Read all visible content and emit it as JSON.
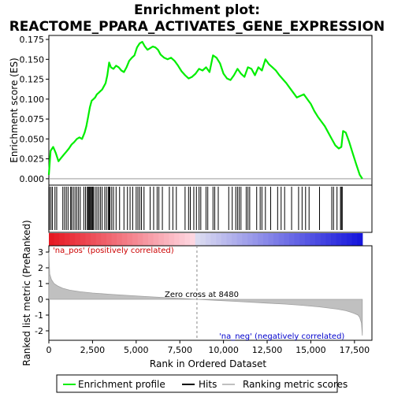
{
  "chart_data": [
    {
      "type": "line",
      "title_line1": "Enrichment plot:",
      "title_line2": "REACTOME_PPARA_ACTIVATES_GENE_EXPRESSION",
      "ylabel": "Enrichment score (ES)",
      "xlim": [
        0,
        18500
      ],
      "ylim": [
        -0.008,
        0.18
      ],
      "yticks": [
        0.0,
        0.025,
        0.05,
        0.075,
        0.1,
        0.125,
        0.15,
        0.175
      ],
      "ytick_labels": [
        "0.000",
        "0.025",
        "0.050",
        "0.075",
        "0.100",
        "0.125",
        "0.150",
        "0.175"
      ],
      "series": [
        {
          "name": "Enrichment profile",
          "color": "#00ee00",
          "x": [
            0,
            100,
            250,
            400,
            550,
            700,
            850,
            1000,
            1150,
            1300,
            1450,
            1600,
            1750,
            1900,
            2050,
            2150,
            2250,
            2350,
            2450,
            2550,
            2650,
            2750,
            2850,
            2950,
            3050,
            3150,
            3250,
            3350,
            3450,
            3550,
            3700,
            3850,
            4000,
            4150,
            4300,
            4450,
            4600,
            4750,
            4900,
            5050,
            5200,
            5350,
            5500,
            5650,
            5800,
            5950,
            6100,
            6250,
            6400,
            6600,
            6800,
            7000,
            7200,
            7400,
            7600,
            7800,
            8000,
            8200,
            8400,
            8600,
            8800,
            9000,
            9200,
            9400,
            9600,
            9800,
            10000,
            10200,
            10400,
            10600,
            10800,
            11000,
            11200,
            11400,
            11600,
            11800,
            12000,
            12200,
            12400,
            12600,
            12800,
            13000,
            13200,
            13400,
            13600,
            13800,
            14000,
            14200,
            14400,
            14600,
            14800,
            15000,
            15200,
            15400,
            15600,
            15800,
            16000,
            16200,
            16400,
            16600,
            16750,
            16850,
            17000,
            17200,
            17400,
            17600,
            17800,
            17950
          ],
          "y": [
            0.005,
            0.035,
            0.04,
            0.032,
            0.022,
            0.026,
            0.03,
            0.034,
            0.038,
            0.043,
            0.046,
            0.05,
            0.052,
            0.05,
            0.058,
            0.066,
            0.078,
            0.09,
            0.098,
            0.1,
            0.102,
            0.106,
            0.108,
            0.11,
            0.112,
            0.116,
            0.12,
            0.13,
            0.146,
            0.14,
            0.138,
            0.142,
            0.14,
            0.136,
            0.134,
            0.14,
            0.148,
            0.152,
            0.155,
            0.165,
            0.17,
            0.172,
            0.166,
            0.162,
            0.164,
            0.166,
            0.165,
            0.162,
            0.156,
            0.152,
            0.15,
            0.152,
            0.148,
            0.142,
            0.135,
            0.13,
            0.126,
            0.128,
            0.132,
            0.138,
            0.136,
            0.14,
            0.134,
            0.155,
            0.152,
            0.145,
            0.132,
            0.126,
            0.124,
            0.13,
            0.138,
            0.132,
            0.128,
            0.14,
            0.138,
            0.13,
            0.14,
            0.136,
            0.15,
            0.144,
            0.14,
            0.136,
            0.13,
            0.125,
            0.12,
            0.114,
            0.108,
            0.102,
            0.104,
            0.106,
            0.1,
            0.094,
            0.085,
            0.078,
            0.072,
            0.066,
            0.058,
            0.05,
            0.042,
            0.038,
            0.04,
            0.06,
            0.058,
            0.046,
            0.032,
            0.018,
            0.005,
            0.0
          ]
        }
      ]
    },
    {
      "type": "scatter",
      "series": [
        {
          "name": "Hits",
          "color": "#000000",
          "x": [
            30,
            120,
            200,
            350,
            450,
            800,
            900,
            1000,
            1100,
            1250,
            1300,
            1400,
            1500,
            1600,
            1700,
            1800,
            2000,
            2100,
            2200,
            2250,
            2300,
            2350,
            2400,
            2450,
            2500,
            2550,
            2650,
            2750,
            2850,
            2950,
            3050,
            3200,
            3300,
            3400,
            3450,
            3500,
            3600,
            3700,
            3850,
            4050,
            4300,
            4500,
            4650,
            4800,
            5000,
            5100,
            5200,
            5300,
            5450,
            5800,
            6000,
            6200,
            6300,
            6500,
            6900,
            7100,
            7300,
            7800,
            8000,
            8100,
            8300,
            8450,
            8600,
            8700,
            9000,
            9100,
            9400,
            9500,
            9700,
            10300,
            10500,
            10700,
            10800,
            10900,
            11000,
            11300,
            11400,
            11500,
            11900,
            12100,
            12200,
            12400,
            12700,
            13100,
            13300,
            13500,
            13900,
            14300,
            14500,
            14700,
            14900,
            15500,
            16200,
            16300,
            16500,
            16700,
            16750,
            16800
          ]
        }
      ]
    },
    {
      "type": "area",
      "ylabel": "Ranked list metric (PreRanked)",
      "xlabel": "Rank in Ordered Dataset",
      "xlim": [
        0,
        18500
      ],
      "ylim": [
        -2.6,
        3.4
      ],
      "xticks": [
        0,
        2500,
        5000,
        7500,
        10000,
        12500,
        15000,
        17500
      ],
      "xtick_labels": [
        "0",
        "2,500",
        "5,000",
        "7,500",
        "10,000",
        "12,500",
        "15,000",
        "17,500"
      ],
      "yticks": [
        -2,
        -1,
        0,
        1,
        2,
        3
      ],
      "ytick_labels": [
        "-2",
        "-1",
        "0",
        "1",
        "2",
        "3"
      ],
      "zero_cross_label": "Zero cross at 8480",
      "zero_cross_x": 8480,
      "pos_label": "'na_pos' (positively correlated)",
      "neg_label": "'na_neg' (negatively correlated)",
      "series": [
        {
          "name": "Ranking metric scores",
          "color": "#c0c0c0",
          "x": [
            0,
            50,
            150,
            300,
            500,
            800,
            1200,
            1800,
            2500,
            3500,
            4500,
            5500,
            6500,
            7500,
            8480,
            9500,
            10500,
            11500,
            12500,
            13500,
            14500,
            15500,
            16000,
            16500,
            17000,
            17300,
            17500,
            17700,
            17800,
            17900,
            17950
          ],
          "y": [
            3.0,
            1.6,
            1.25,
            1.0,
            0.85,
            0.7,
            0.58,
            0.48,
            0.4,
            0.32,
            0.25,
            0.18,
            0.12,
            0.06,
            0.0,
            -0.06,
            -0.12,
            -0.18,
            -0.24,
            -0.3,
            -0.38,
            -0.48,
            -0.55,
            -0.62,
            -0.72,
            -0.82,
            -0.9,
            -1.0,
            -1.15,
            -1.5,
            -2.3
          ]
        }
      ]
    }
  ],
  "legend": {
    "items": [
      {
        "label": "Enrichment profile",
        "color": "#00ee00"
      },
      {
        "label": "Hits",
        "color": "#000000"
      },
      {
        "label": "Ranking metric scores",
        "color": "#c0c0c0"
      }
    ]
  }
}
